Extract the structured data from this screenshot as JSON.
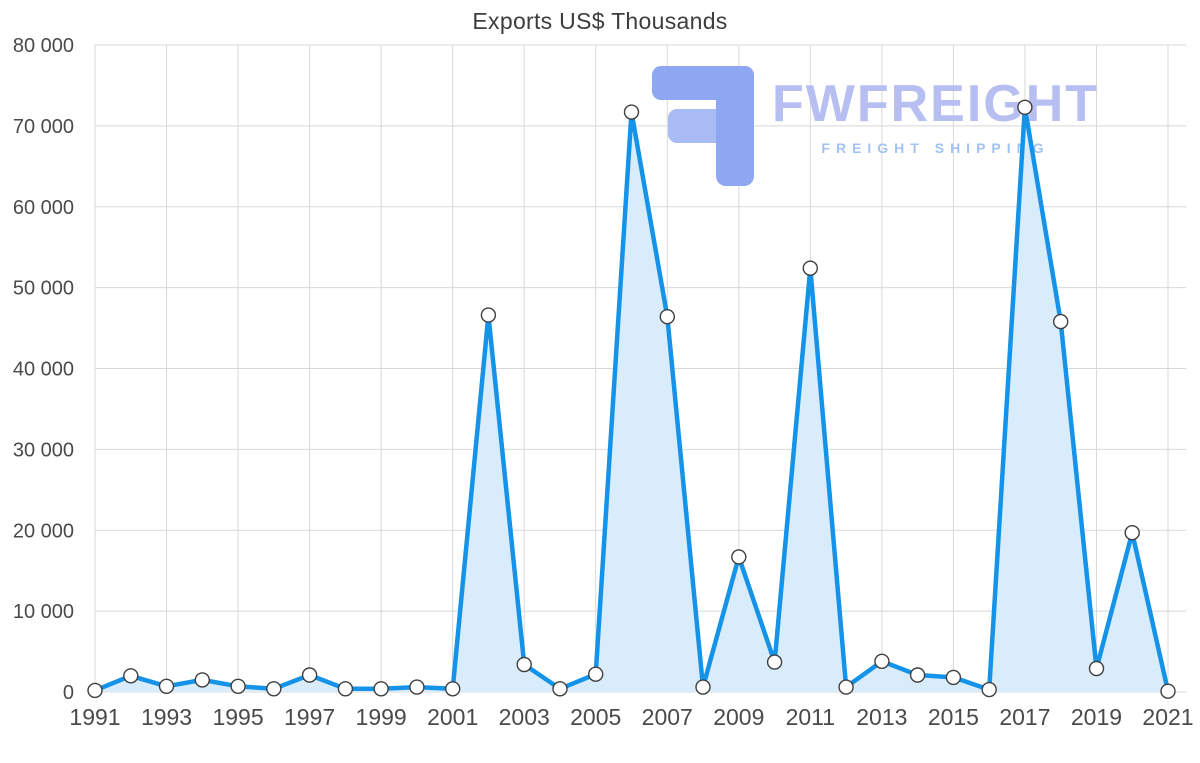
{
  "chart_data": {
    "type": "area",
    "title": "Exports US$ Thousands",
    "series_name": "Exports",
    "x": [
      1991,
      1992,
      1993,
      1994,
      1995,
      1996,
      1997,
      1998,
      1999,
      2000,
      2001,
      2002,
      2003,
      2004,
      2005,
      2006,
      2007,
      2008,
      2009,
      2010,
      2011,
      2012,
      2013,
      2014,
      2015,
      2016,
      2017,
      2018,
      2019,
      2020,
      2021
    ],
    "values": [
      200,
      2000,
      700,
      1500,
      700,
      400,
      2100,
      400,
      400,
      600,
      400,
      46600,
      3400,
      400,
      2200,
      71700,
      46400,
      600,
      16700,
      3700,
      52400,
      600,
      3800,
      2100,
      1800,
      300,
      72300,
      45800,
      2900,
      19700,
      100
    ],
    "ylim": [
      0,
      80000
    ],
    "yticks": [
      0,
      10000,
      20000,
      30000,
      40000,
      50000,
      60000,
      70000,
      80000
    ],
    "ytick_labels": [
      "0",
      "10 000",
      "20 000",
      "30 000",
      "40 000",
      "50 000",
      "60 000",
      "70 000",
      "80 000"
    ],
    "xticks": [
      1991,
      1993,
      1995,
      1997,
      1999,
      2001,
      2003,
      2005,
      2007,
      2009,
      2011,
      2013,
      2015,
      2017,
      2019,
      2021
    ],
    "xtick_labels": [
      "1991",
      "1993",
      "1995",
      "1997",
      "1999",
      "2001",
      "2003",
      "2005",
      "2007",
      "2009",
      "2011",
      "2013",
      "2015",
      "2017",
      "2019",
      "2021"
    ],
    "grid": true,
    "legend": false
  },
  "watermark": {
    "brand": "FWFREIGHT",
    "subtitle": "FREIGHT SHIPPING"
  },
  "colors": {
    "line": "#1593e9",
    "fill": "#d9ecfb",
    "grid": "#d8d8d8",
    "tick_text": "#4a4a4a",
    "title_text": "#3d3d3d",
    "marker_fill": "#ffffff",
    "marker_stroke": "#3f3f3f",
    "watermark_brand": "#b7bff2",
    "watermark_subtitle": "#a3c3f0",
    "watermark_logo": "#8fa7f3",
    "watermark_logo_light": "#a9bbf5"
  }
}
